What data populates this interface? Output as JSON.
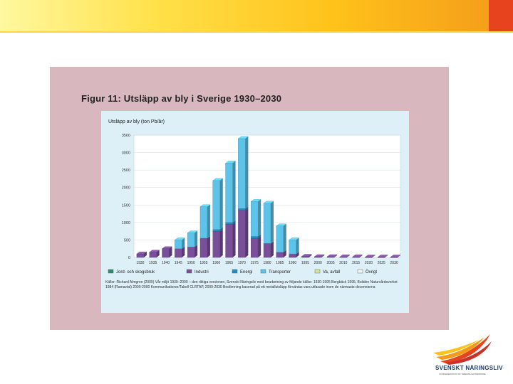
{
  "figure": {
    "title": "Figur 11: Utsläpp av bly i Sverige 1930–2030",
    "source": "Källor: Richard Almgren (2009) Vår miljö 1930–2000 – den riktiga versionen, Svenskt Näringsliv med bearbetning av följande källor: 1930-1995 Bergbäck 1995, Boliden Naturvårdsverket 1984 (Ramavtal) 2000-2000 Kommunikationer/Tabell CLRTAP, 2009-2030 Bedömning baserad på ett metallutsläpp förväntas vara utfasade inom de närmaste decennierna"
  },
  "logo": {
    "name": "SVENSKT NÄRINGSLIV",
    "tagline": "CONFEDERATION OF SWEDISH ENTERPRISE"
  },
  "chart_data": {
    "type": "bar",
    "stacked": true,
    "title": "Figur 11: Utsläpp av bly i Sverige 1930–2030",
    "ylabel": "Utsläpp av bly (ton Pb/år)",
    "xlabel": "",
    "ylim": [
      0,
      3500
    ],
    "yticks": [
      0,
      500,
      1000,
      1500,
      2000,
      2500,
      3000,
      3500
    ],
    "categories": [
      "1930",
      "1935",
      "1940",
      "1945",
      "1950",
      "1955",
      "1960",
      "1965",
      "1970",
      "1975",
      "1980",
      "1985",
      "1990",
      "1995",
      "2000",
      "2005",
      "2010",
      "2015",
      "2020",
      "2025",
      "2030"
    ],
    "series": [
      {
        "name": "Jord- och skogsbruk",
        "color": "#2e8c6e",
        "values": [
          0,
          0,
          0,
          0,
          0,
          0,
          0,
          0,
          0,
          0,
          0,
          0,
          0,
          0,
          0,
          0,
          0,
          0,
          0,
          0,
          0
        ]
      },
      {
        "name": "Industri",
        "color": "#7a4f9a",
        "values": [
          100,
          150,
          250,
          250,
          300,
          550,
          750,
          950,
          1350,
          550,
          400,
          150,
          100,
          30,
          20,
          20,
          15,
          15,
          10,
          10,
          10
        ]
      },
      {
        "name": "Energi",
        "color": "#1f8fc4",
        "values": [
          0,
          0,
          0,
          0,
          0,
          0,
          50,
          50,
          50,
          50,
          0,
          0,
          0,
          0,
          0,
          0,
          0,
          0,
          0,
          0,
          0
        ]
      },
      {
        "name": "Transporter",
        "color": "#5cc3ea",
        "values": [
          0,
          0,
          0,
          250,
          400,
          900,
          1400,
          1700,
          2000,
          1000,
          1150,
          750,
          400,
          0,
          0,
          0,
          0,
          0,
          0,
          0,
          0
        ]
      },
      {
        "name": "Va, avfall",
        "color": "#d6e39a",
        "values": [
          0,
          0,
          0,
          0,
          0,
          0,
          0,
          0,
          0,
          0,
          0,
          0,
          0,
          0,
          0,
          0,
          0,
          0,
          0,
          0,
          0
        ]
      },
      {
        "name": "Övrigt",
        "color": "#f2f2ee",
        "values": [
          0,
          0,
          0,
          0,
          0,
          0,
          0,
          0,
          0,
          0,
          0,
          0,
          0,
          0,
          0,
          0,
          0,
          0,
          0,
          0,
          0
        ]
      }
    ],
    "legend_position": "bottom",
    "grid": true
  }
}
